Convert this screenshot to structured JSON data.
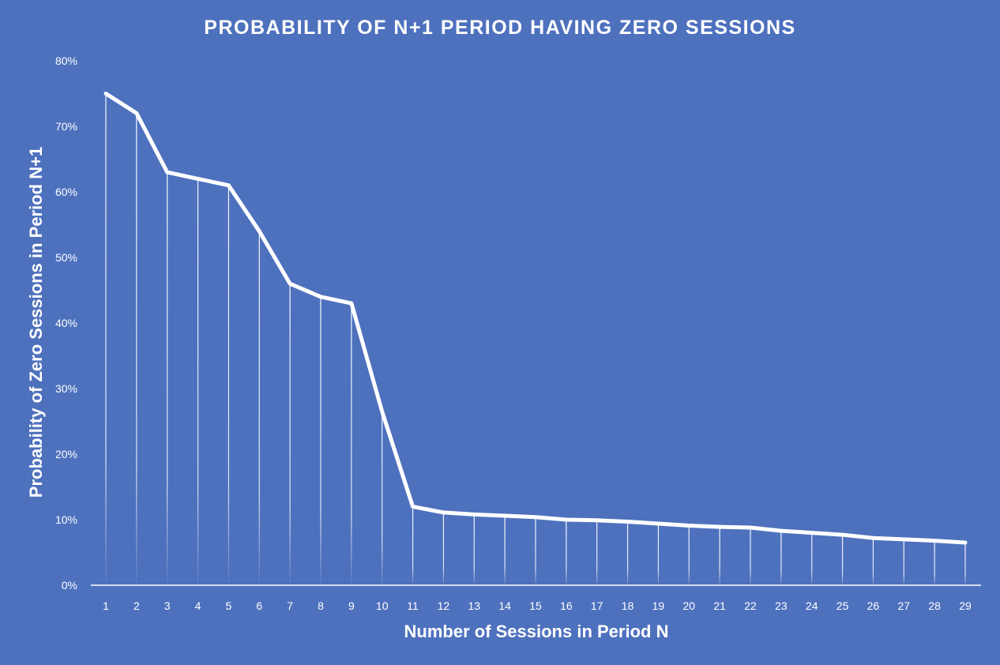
{
  "chart_data": {
    "type": "line",
    "title": "PROBABILITY OF N+1 PERIOD HAVING ZERO SESSIONS",
    "xlabel": "Number of Sessions in Period N",
    "ylabel": "Probability of Zero Sessions in Period N+1",
    "categories": [
      "1",
      "2",
      "3",
      "4",
      "5",
      "6",
      "7",
      "8",
      "9",
      "10",
      "11",
      "12",
      "13",
      "14",
      "15",
      "16",
      "17",
      "18",
      "19",
      "20",
      "21",
      "22",
      "23",
      "24",
      "25",
      "26",
      "27",
      "28",
      "29"
    ],
    "series": [
      {
        "values": [
          75,
          72,
          63,
          62,
          61,
          54,
          46,
          44,
          43,
          26.5,
          12,
          11.1,
          10.8,
          10.6,
          10.4,
          10.0,
          9.9,
          9.7,
          9.4,
          9.1,
          8.9,
          8.8,
          8.3,
          8.0,
          7.7,
          7.2,
          7.0,
          6.8,
          6.5
        ]
      }
    ],
    "ylim": [
      0,
      80
    ],
    "yticks": [
      0,
      10,
      20,
      30,
      40,
      50,
      60,
      70,
      80
    ],
    "ytick_labels": [
      "0%",
      "10%",
      "20%",
      "30%",
      "40%",
      "50%",
      "60%",
      "70%",
      "80%"
    ],
    "drop_lines": true,
    "grid": false,
    "colors": {
      "background": "#4e71be",
      "line": "#ffffff",
      "text": "#ffffff"
    }
  }
}
